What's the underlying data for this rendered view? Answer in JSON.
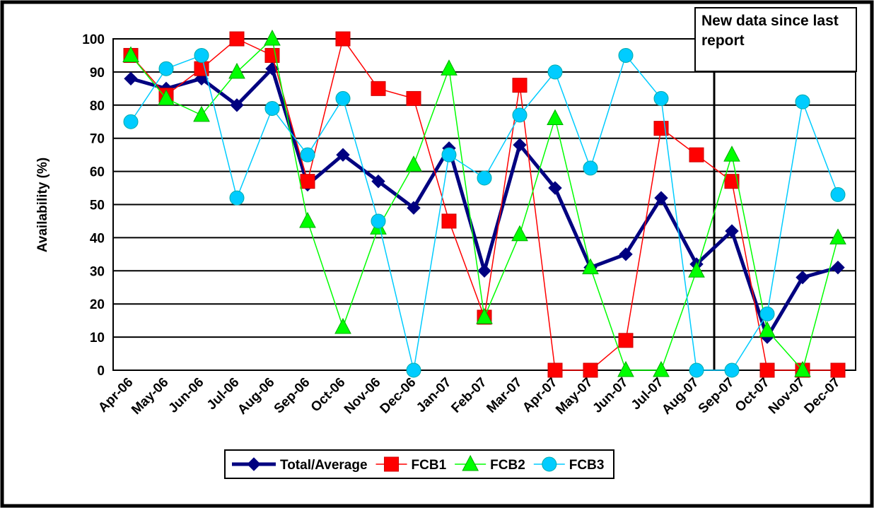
{
  "chart_data": {
    "type": "line",
    "y_label": "Availability (%)",
    "annotation": "New data since last report",
    "categories": [
      "Apr-06",
      "May-06",
      "Jun-06",
      "Jul-06",
      "Aug-06",
      "Sep-06",
      "Oct-06",
      "Nov-06",
      "Dec-06",
      "Jan-07",
      "Feb-07",
      "Mar-07",
      "Apr-07",
      "May-07",
      "Jun-07",
      "Jul-07",
      "Aug-07",
      "Sep-07",
      "Oct-07",
      "Nov-07",
      "Dec-07"
    ],
    "series": [
      {
        "name": "Total/Average",
        "color": "#000080",
        "marker": "diamond",
        "values": [
          88,
          85,
          88,
          80,
          91,
          56,
          65,
          57,
          49,
          67,
          30,
          68,
          55,
          31,
          35,
          52,
          32,
          42,
          10,
          28,
          31
        ]
      },
      {
        "name": "FCB1",
        "color": "#ff0000",
        "marker": "square",
        "values": [
          95,
          83,
          91,
          100,
          95,
          57,
          100,
          85,
          82,
          45,
          16,
          86,
          0,
          0,
          9,
          73,
          65,
          57,
          0,
          0,
          0
        ]
      },
      {
        "name": "FCB2",
        "color": "#00ff00",
        "marker": "triangle",
        "values": [
          95,
          82,
          77,
          90,
          100,
          45,
          13,
          43,
          62,
          91,
          16,
          41,
          76,
          31,
          0,
          0,
          30,
          65,
          12,
          0,
          40
        ]
      },
      {
        "name": "FCB3",
        "color": "#00ccff",
        "marker": "circle",
        "values": [
          75,
          91,
          95,
          52,
          79,
          65,
          82,
          45,
          0,
          65,
          58,
          77,
          90,
          61,
          95,
          82,
          0,
          0,
          17,
          81,
          53
        ]
      }
    ],
    "ylim": [
      0,
      100
    ],
    "yticks": [
      0,
      10,
      20,
      30,
      40,
      50,
      60,
      70,
      80,
      90,
      100
    ],
    "grid": true,
    "legend": "bottom"
  }
}
